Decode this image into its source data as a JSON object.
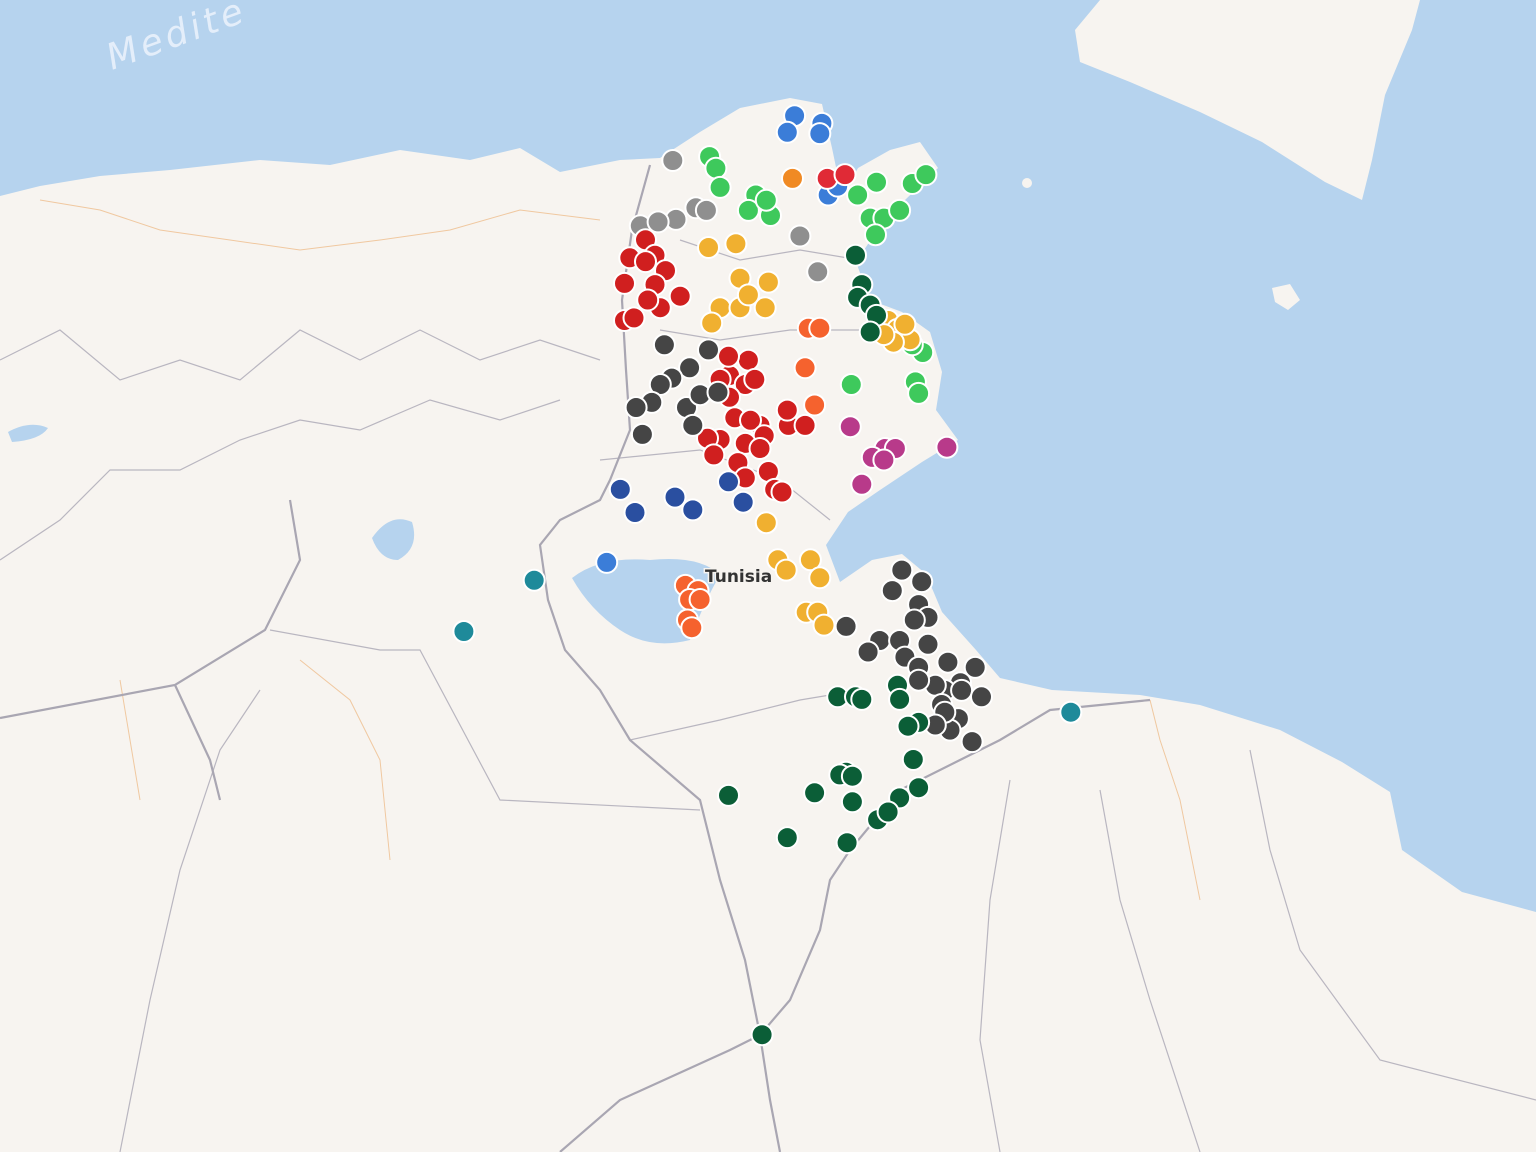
{
  "map": {
    "sea_label": "Medite",
    "country_label": "Tunisia",
    "colors": {
      "water": "#b6d3ee",
      "land": "#f7f4f0",
      "border": "#a9a6b2"
    }
  },
  "marker_groups": [
    {
      "color": "#3b7dd8",
      "points": [
        [
          9.78,
          37.52
        ],
        [
          10.04,
          37.46
        ],
        [
          9.71,
          37.39
        ],
        [
          10.02,
          37.38
        ],
        [
          10.1,
          36.9
        ],
        [
          10.19,
          36.97
        ],
        [
          7.99,
          34.03
        ]
      ]
    },
    {
      "color": "#3ec95c",
      "points": [
        [
          8.97,
          37.2
        ],
        [
          9.03,
          37.11
        ],
        [
          9.07,
          36.96
        ],
        [
          9.41,
          36.9
        ],
        [
          9.34,
          36.78
        ],
        [
          9.55,
          36.74
        ],
        [
          9.51,
          36.86
        ],
        [
          10.38,
          36.9
        ],
        [
          10.56,
          37.0
        ],
        [
          10.9,
          36.99
        ],
        [
          11.03,
          37.06
        ],
        [
          10.5,
          36.72
        ],
        [
          10.63,
          36.72
        ],
        [
          10.78,
          36.78
        ],
        [
          10.55,
          36.59
        ],
        [
          11.0,
          35.67
        ],
        [
          10.93,
          35.44
        ],
        [
          10.96,
          35.35
        ],
        [
          10.32,
          35.42
        ],
        [
          10.9,
          35.73
        ]
      ]
    },
    {
      "color": "#8f8f8f",
      "points": [
        [
          8.62,
          37.17
        ],
        [
          8.84,
          36.8
        ],
        [
          8.94,
          36.78
        ],
        [
          8.31,
          36.66
        ],
        [
          8.65,
          36.71
        ],
        [
          8.48,
          36.69
        ],
        [
          9.83,
          36.58
        ],
        [
          10.0,
          36.3
        ]
      ]
    },
    {
      "color": "#f08a24",
      "points": [
        [
          9.76,
          37.03
        ]
      ]
    },
    {
      "color": "#e02a36",
      "points": [
        [
          10.09,
          37.03
        ],
        [
          10.26,
          37.06
        ]
      ]
    },
    {
      "color": "#d01f1f",
      "points": [
        [
          8.36,
          36.55
        ],
        [
          8.45,
          36.43
        ],
        [
          8.21,
          36.41
        ],
        [
          8.36,
          36.38
        ],
        [
          8.55,
          36.31
        ],
        [
          8.16,
          36.21
        ],
        [
          8.45,
          36.2
        ],
        [
          8.69,
          36.11
        ],
        [
          8.5,
          36.02
        ],
        [
          8.16,
          35.92
        ],
        [
          8.25,
          35.94
        ],
        [
          8.38,
          36.08
        ],
        [
          9.16,
          35.49
        ],
        [
          9.34,
          35.61
        ],
        [
          9.07,
          35.46
        ],
        [
          9.31,
          35.42
        ],
        [
          9.4,
          35.46
        ],
        [
          9.16,
          35.32
        ],
        [
          9.21,
          35.16
        ],
        [
          9.45,
          35.1
        ],
        [
          9.36,
          35.14
        ],
        [
          9.72,
          35.1
        ],
        [
          9.88,
          35.1
        ],
        [
          9.71,
          35.22
        ],
        [
          9.49,
          35.02
        ],
        [
          9.31,
          34.96
        ],
        [
          9.07,
          34.99
        ],
        [
          8.95,
          35.0
        ],
        [
          9.01,
          34.87
        ],
        [
          9.24,
          34.81
        ],
        [
          9.45,
          34.92
        ],
        [
          9.53,
          34.74
        ],
        [
          9.31,
          34.69
        ],
        [
          9.59,
          34.6
        ],
        [
          9.66,
          34.58
        ],
        [
          9.15,
          35.64
        ]
      ]
    },
    {
      "color": "#454545",
      "points": [
        [
          8.54,
          35.73
        ],
        [
          8.96,
          35.69
        ],
        [
          8.78,
          35.55
        ],
        [
          8.61,
          35.47
        ],
        [
          8.5,
          35.42
        ],
        [
          8.42,
          35.28
        ],
        [
          8.27,
          35.24
        ],
        [
          8.33,
          35.03
        ],
        [
          8.75,
          35.24
        ],
        [
          8.88,
          35.34
        ],
        [
          9.05,
          35.36
        ],
        [
          8.81,
          35.1
        ],
        [
          10.8,
          33.97
        ],
        [
          10.99,
          33.88
        ],
        [
          10.71,
          33.81
        ],
        [
          10.96,
          33.7
        ],
        [
          11.05,
          33.6
        ],
        [
          10.92,
          33.58
        ],
        [
          10.27,
          33.53
        ],
        [
          10.59,
          33.42
        ],
        [
          10.48,
          33.33
        ],
        [
          10.78,
          33.42
        ],
        [
          11.05,
          33.39
        ],
        [
          10.83,
          33.29
        ],
        [
          10.96,
          33.21
        ],
        [
          11.24,
          33.25
        ],
        [
          11.5,
          33.21
        ],
        [
          11.36,
          33.09
        ],
        [
          11.21,
          33.03
        ],
        [
          11.12,
          33.07
        ],
        [
          11.37,
          33.03
        ],
        [
          11.56,
          32.98
        ],
        [
          11.34,
          32.81
        ],
        [
          11.18,
          32.92
        ],
        [
          11.26,
          32.72
        ],
        [
          11.47,
          32.63
        ],
        [
          10.96,
          33.11
        ],
        [
          11.21,
          32.86
        ],
        [
          11.12,
          32.76
        ]
      ]
    },
    {
      "color": "#f0b030",
      "points": [
        [
          8.96,
          36.49
        ],
        [
          9.22,
          36.52
        ],
        [
          9.26,
          36.25
        ],
        [
          9.53,
          36.22
        ],
        [
          9.07,
          36.02
        ],
        [
          9.26,
          36.02
        ],
        [
          9.5,
          36.02
        ],
        [
          9.34,
          36.12
        ],
        [
          8.99,
          35.9
        ],
        [
          10.67,
          35.92
        ],
        [
          10.76,
          35.85
        ],
        [
          10.88,
          35.77
        ],
        [
          10.72,
          35.75
        ],
        [
          9.51,
          34.34
        ],
        [
          9.62,
          34.05
        ],
        [
          9.93,
          34.05
        ],
        [
          9.7,
          33.97
        ],
        [
          10.02,
          33.91
        ],
        [
          9.89,
          33.64
        ],
        [
          10.0,
          33.64
        ],
        [
          10.06,
          33.54
        ],
        [
          10.63,
          35.81
        ],
        [
          10.83,
          35.89
        ]
      ]
    },
    {
      "color": "#0b5e37",
      "points": [
        [
          10.36,
          36.43
        ],
        [
          10.42,
          36.2
        ],
        [
          10.38,
          36.1
        ],
        [
          10.5,
          36.04
        ],
        [
          10.56,
          35.96
        ],
        [
          10.5,
          35.83
        ],
        [
          10.19,
          32.98
        ],
        [
          10.36,
          32.98
        ],
        [
          10.42,
          32.96
        ],
        [
          10.76,
          33.07
        ],
        [
          10.78,
          32.96
        ],
        [
          10.96,
          32.78
        ],
        [
          10.86,
          32.75
        ],
        [
          10.91,
          32.49
        ],
        [
          10.27,
          32.39
        ],
        [
          10.21,
          32.37
        ],
        [
          10.33,
          32.36
        ],
        [
          9.97,
          32.23
        ],
        [
          10.33,
          32.16
        ],
        [
          10.78,
          32.19
        ],
        [
          10.96,
          32.27
        ],
        [
          10.57,
          32.02
        ],
        [
          10.67,
          32.08
        ],
        [
          9.15,
          32.21
        ],
        [
          9.71,
          31.88
        ],
        [
          10.28,
          31.84
        ],
        [
          9.47,
          30.34
        ]
      ]
    },
    {
      "color": "#f5622e",
      "points": [
        [
          9.91,
          35.86
        ],
        [
          10.02,
          35.86
        ],
        [
          9.88,
          35.55
        ],
        [
          9.97,
          35.26
        ],
        [
          8.74,
          33.85
        ],
        [
          8.86,
          33.81
        ],
        [
          8.78,
          33.74
        ],
        [
          8.88,
          33.74
        ],
        [
          8.76,
          33.58
        ],
        [
          8.8,
          33.52
        ]
      ]
    },
    {
      "color": "#b83a8a",
      "points": [
        [
          10.31,
          35.09
        ],
        [
          10.64,
          34.92
        ],
        [
          10.74,
          34.92
        ],
        [
          10.52,
          34.85
        ],
        [
          10.63,
          34.83
        ],
        [
          11.23,
          34.93
        ],
        [
          10.42,
          34.64
        ]
      ]
    },
    {
      "color": "#2a4fa0",
      "points": [
        [
          8.12,
          34.6
        ],
        [
          8.26,
          34.42
        ],
        [
          8.64,
          34.54
        ],
        [
          8.81,
          34.44
        ],
        [
          9.15,
          34.66
        ],
        [
          9.29,
          34.5
        ]
      ]
    },
    {
      "color": "#1e8a9a",
      "points": [
        [
          7.3,
          33.89
        ],
        [
          6.63,
          33.49
        ],
        [
          12.41,
          32.86
        ]
      ]
    }
  ]
}
